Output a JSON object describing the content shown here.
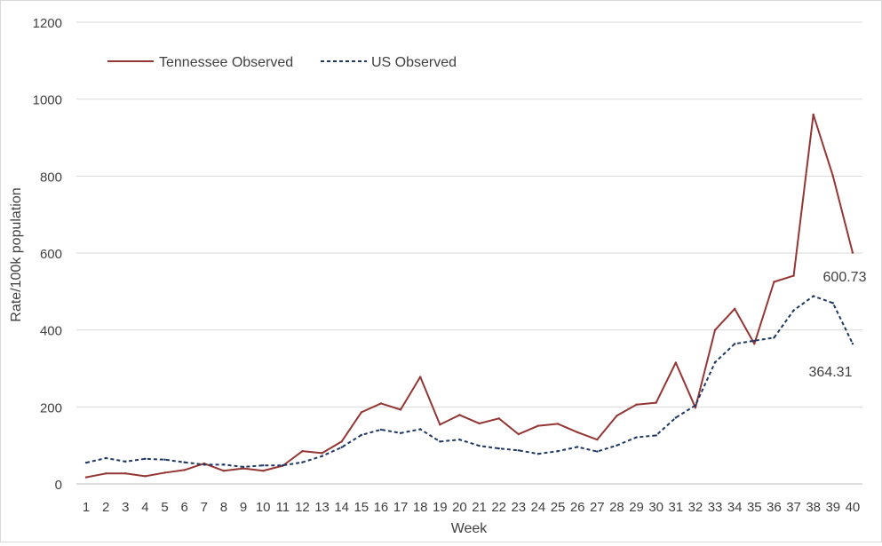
{
  "chart_data": {
    "type": "line",
    "title": "",
    "xlabel": "Week",
    "ylabel": "Rate/100k population",
    "ylim": [
      0,
      1200
    ],
    "yticks": [
      0,
      200,
      400,
      600,
      800,
      1000,
      1200
    ],
    "grid": "horizontal",
    "legend_position": "top-left",
    "categories": [
      "1",
      "2",
      "3",
      "4",
      "5",
      "6",
      "7",
      "8",
      "9",
      "10",
      "11",
      "12",
      "13",
      "14",
      "15",
      "16",
      "17",
      "18",
      "19",
      "20",
      "21",
      "22",
      "23",
      "24",
      "25",
      "26",
      "27",
      "28",
      "29",
      "30",
      "31",
      "32",
      "33",
      "34",
      "35",
      "36",
      "37",
      "38",
      "39",
      "40"
    ],
    "series": [
      {
        "name": "Tennessee Observed",
        "color": "#943634",
        "style": "solid",
        "end_label": "600.73",
        "values": [
          17,
          27,
          27,
          20,
          29,
          36,
          53,
          34,
          40,
          34,
          47,
          85,
          80,
          110,
          186,
          209,
          193,
          278,
          154,
          179,
          157,
          170,
          129,
          151,
          156,
          134,
          115,
          177,
          206,
          211,
          315,
          198,
          400,
          455,
          364,
          525,
          541,
          960,
          800,
          600.73
        ]
      },
      {
        "name": "US Observed",
        "color": "#1f3864",
        "style": "dashed",
        "end_label": "364.31",
        "values": [
          55,
          67,
          58,
          65,
          63,
          56,
          50,
          50,
          44,
          48,
          48,
          56,
          72,
          95,
          127,
          141,
          132,
          142,
          110,
          115,
          99,
          92,
          87,
          78,
          85,
          96,
          84,
          100,
          121,
          126,
          172,
          204,
          316,
          364,
          372,
          380,
          451,
          488,
          470,
          364.31
        ]
      }
    ]
  }
}
